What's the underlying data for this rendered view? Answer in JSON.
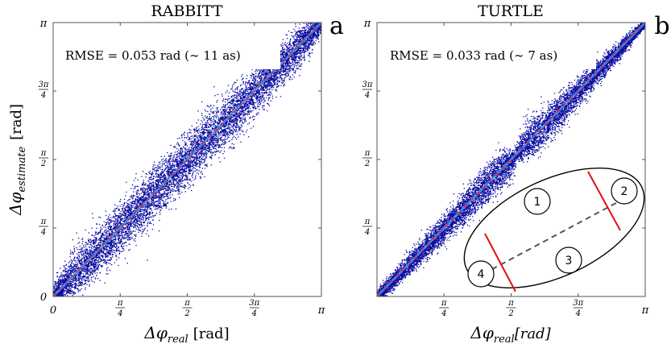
{
  "figure": {
    "ylabel": "Δφ_estimate [rad]",
    "ylabel_main": "Δφ",
    "ylabel_sub": "estimate",
    "ylabel_unit": "[rad]"
  },
  "chart_data": [
    {
      "type": "scatter",
      "title": "RABBITT",
      "panel_label": "a",
      "annotation": "RMSE = 0.053 rad (∼ 11 as)",
      "xlabel": "Δφ_real [rad]",
      "xlabel_main": "Δφ",
      "xlabel_sub": "real",
      "xlabel_unit": "[rad]",
      "xlim": [
        0,
        3.14159
      ],
      "ylim": [
        0,
        3.14159
      ],
      "ticks": [
        {
          "value": 0,
          "label": "0",
          "type": "plain"
        },
        {
          "value": 0.7854,
          "num": "π",
          "den": "4",
          "type": "frac"
        },
        {
          "value": 1.5708,
          "num": "π",
          "den": "2",
          "type": "frac"
        },
        {
          "value": 2.3562,
          "num": "3π",
          "den": "4",
          "type": "frac"
        },
        {
          "value": 3.14159,
          "label": "π",
          "type": "plain"
        }
      ],
      "series": [
        {
          "kind": "scatter_band",
          "color": "#0a0aa0",
          "center": "y = x",
          "halfwidth": [
            [
              0,
              0.06
            ],
            [
              0.3,
              0.16
            ],
            [
              1.0,
              0.16
            ],
            [
              2.0,
              0.16
            ],
            [
              2.9,
              0.12
            ],
            [
              3.14,
              0.05
            ]
          ]
        },
        {
          "kind": "line",
          "style": "dashed",
          "color": "#e0303a",
          "x": [
            0,
            3.14159
          ],
          "y": [
            0,
            3.14159
          ]
        }
      ],
      "grid": false
    },
    {
      "type": "scatter",
      "title": "TURTLE",
      "panel_label": "b",
      "annotation": "RMSE = 0.033 rad (∼ 7 as)",
      "xlabel": "Δφ_real[rad]",
      "xlabel_main": "Δφ",
      "xlabel_sub": "real",
      "xlabel_unit": "[rad]",
      "xlim": [
        0,
        3.14159
      ],
      "ylim": [
        0,
        3.14159
      ],
      "ticks": [
        {
          "value": 0,
          "label": "",
          "type": "plain"
        },
        {
          "value": 0.7854,
          "num": "π",
          "den": "4",
          "type": "frac"
        },
        {
          "value": 1.5708,
          "num": "π",
          "den": "2",
          "type": "frac"
        },
        {
          "value": 2.3562,
          "num": "3π",
          "den": "4",
          "type": "frac"
        },
        {
          "value": 3.14159,
          "label": "π",
          "type": "plain"
        }
      ],
      "series": [
        {
          "kind": "scatter_band",
          "color": "#0a0aa0",
          "center": "y = x",
          "halfwidth": [
            [
              0,
              0.04
            ],
            [
              0.4,
              0.07
            ],
            [
              1.2,
              0.11
            ],
            [
              1.5,
              0.13
            ],
            [
              1.62,
              0.04
            ],
            [
              1.78,
              0.13
            ],
            [
              2.2,
              0.1
            ],
            [
              2.9,
              0.05
            ],
            [
              3.14,
              0.02
            ]
          ]
        },
        {
          "kind": "line",
          "style": "dashed",
          "color": "#e0303a",
          "x": [
            0,
            3.14159
          ],
          "y": [
            0,
            3.14159
          ]
        }
      ],
      "inset": {
        "nodes": [
          "1",
          "2",
          "3",
          "4"
        ]
      },
      "grid": false
    }
  ]
}
